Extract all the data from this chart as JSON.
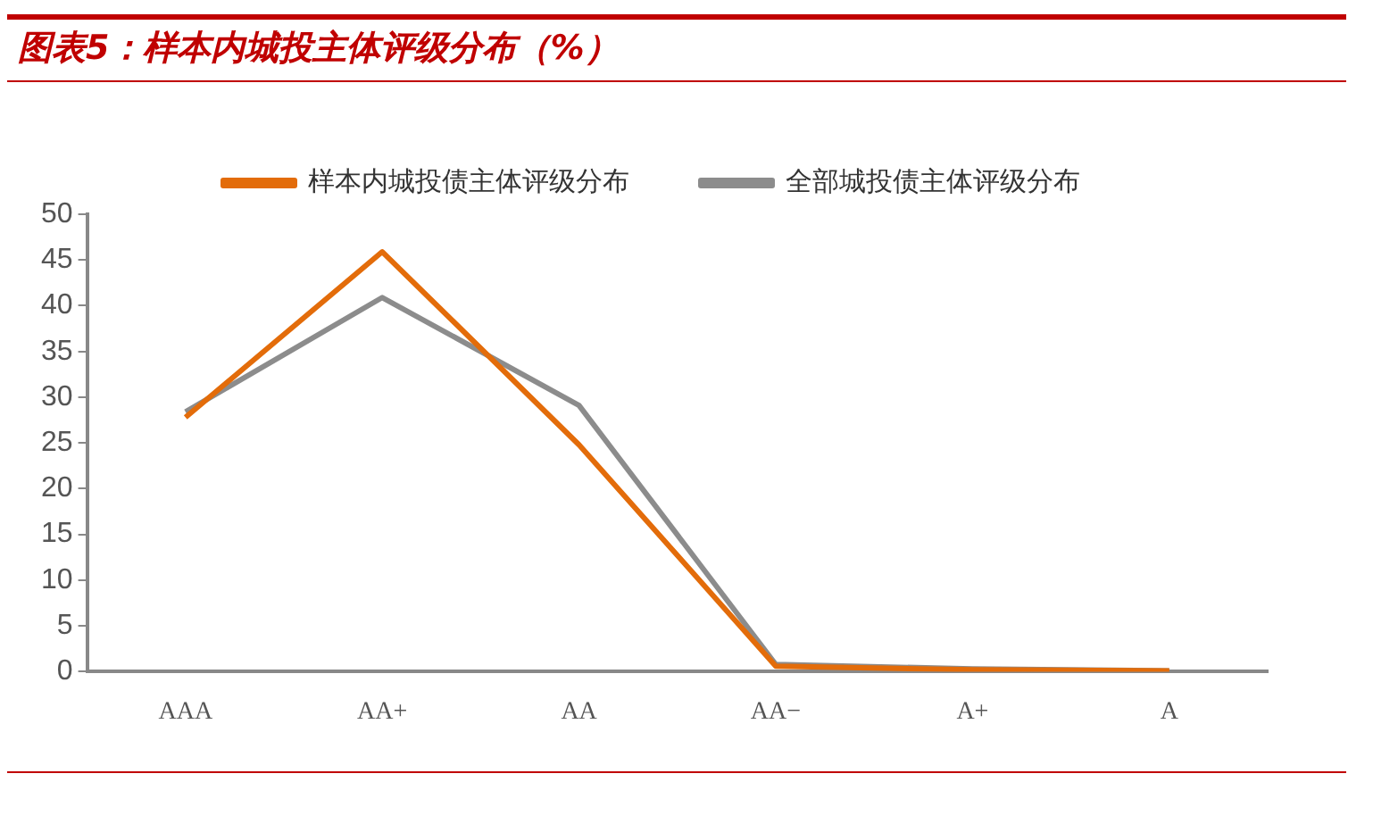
{
  "chart_data": {
    "type": "line",
    "title": "图表5：样本内城投主体评级分布（%）",
    "categories": [
      "AAA",
      "AA+",
      "AA",
      "AA−",
      "A+",
      "A"
    ],
    "series": [
      {
        "name": "样本内城投债主体评级分布",
        "color": "#e36c0a",
        "values": [
          27.8,
          45.9,
          24.8,
          0.6,
          0.2,
          0.1
        ]
      },
      {
        "name": "全部城投债主体评级分布",
        "color": "#8c8c8c",
        "values": [
          28.4,
          40.9,
          29.1,
          0.8,
          0.3,
          0.1
        ]
      }
    ],
    "ylim": [
      0,
      50
    ],
    "yticks": [
      0,
      5,
      10,
      15,
      20,
      25,
      30,
      35,
      40,
      45,
      50
    ],
    "grid": false,
    "legend": "top",
    "marker": "none",
    "line_style": "solid"
  }
}
